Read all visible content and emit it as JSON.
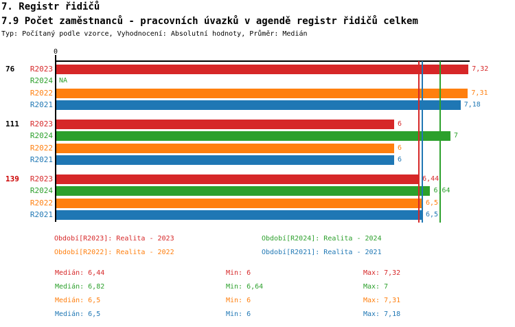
{
  "header": {
    "section_title": "7. Registr řidičů",
    "chart_title": "7.9 Počet zaměstnanců - pracovních úvazků v agendě registr řidičů celkem",
    "meta": "Typ: Počítaný podle vzorce, Vyhodnocení: Absolutní hodnoty, Průměr: Medián"
  },
  "colors": {
    "R2023": "#d62728",
    "R2024": "#2ca02c",
    "R2022": "#ff7f0e",
    "R2021": "#1f77b4"
  },
  "chart_data": {
    "type": "bar",
    "orientation": "horizontal",
    "title": "7.9 Počet zaměstnanců - pracovních úvazků v agendě registr řidičů celkem",
    "axis": {
      "zero_label": "0",
      "x_min": 0,
      "x_max": 7.35,
      "grid": false
    },
    "series_order": [
      "R2023",
      "R2024",
      "R2022",
      "R2021"
    ],
    "groups": [
      {
        "label": "76",
        "label_color": "#000000",
        "bars": [
          {
            "series": "R2023",
            "value": 7.32,
            "value_label": "7,32",
            "color": "#d62728"
          },
          {
            "series": "R2024",
            "value": null,
            "value_label": "NA",
            "color": "#2ca02c"
          },
          {
            "series": "R2022",
            "value": 7.31,
            "value_label": "7,31",
            "color": "#ff7f0e"
          },
          {
            "series": "R2021",
            "value": 7.18,
            "value_label": "7,18",
            "color": "#1f77b4"
          }
        ]
      },
      {
        "label": "111",
        "label_color": "#000000",
        "bars": [
          {
            "series": "R2023",
            "value": 6,
            "value_label": "6",
            "color": "#d62728"
          },
          {
            "series": "R2024",
            "value": 7,
            "value_label": "7",
            "color": "#2ca02c"
          },
          {
            "series": "R2022",
            "value": 6,
            "value_label": "6",
            "color": "#ff7f0e"
          },
          {
            "series": "R2021",
            "value": 6,
            "value_label": "6",
            "color": "#1f77b4"
          }
        ]
      },
      {
        "label": "139",
        "label_color": "#cc0000",
        "bars": [
          {
            "series": "R2023",
            "value": 6.44,
            "value_label": "6,44",
            "color": "#d62728"
          },
          {
            "series": "R2024",
            "value": 6.64,
            "value_label": "6,64",
            "color": "#2ca02c"
          },
          {
            "series": "R2022",
            "value": 6.5,
            "value_label": "6,5",
            "color": "#ff7f0e"
          },
          {
            "series": "R2021",
            "value": 6.5,
            "value_label": "6,5",
            "color": "#1f77b4"
          }
        ]
      }
    ],
    "median_lines": [
      {
        "series": "R2022",
        "value": 6.5,
        "color": "#ff7f0e"
      },
      {
        "series": "R2023",
        "value": 6.44,
        "color": "#d62728"
      },
      {
        "series": "R2021",
        "value": 6.5,
        "color": "#1f77b4"
      },
      {
        "series": "R2024",
        "value": 6.82,
        "color": "#2ca02c"
      }
    ]
  },
  "legend": {
    "items": [
      {
        "text": "Období[R2023]: Realita - 2023",
        "color": "#d62728"
      },
      {
        "text": "Období[R2024]: Realita - 2024",
        "color": "#2ca02c"
      },
      {
        "text": "Období[R2022]: Realita - 2022",
        "color": "#ff7f0e"
      },
      {
        "text": "Období[R2021]: Realita - 2021",
        "color": "#1f77b4"
      }
    ]
  },
  "stats": {
    "rows": [
      {
        "median": "Medián: 6,44",
        "min": "Min: 6",
        "max": "Max: 7,32",
        "color": "#d62728"
      },
      {
        "median": "Medián: 6,82",
        "min": "Min: 6,64",
        "max": "Max: 7",
        "color": "#2ca02c"
      },
      {
        "median": "Medián: 6,5",
        "min": "Min: 6",
        "max": "Max: 7,31",
        "color": "#ff7f0e"
      },
      {
        "median": "Medián: 6,5",
        "min": "Min: 6",
        "max": "Max: 7,18",
        "color": "#1f77b4"
      }
    ]
  }
}
